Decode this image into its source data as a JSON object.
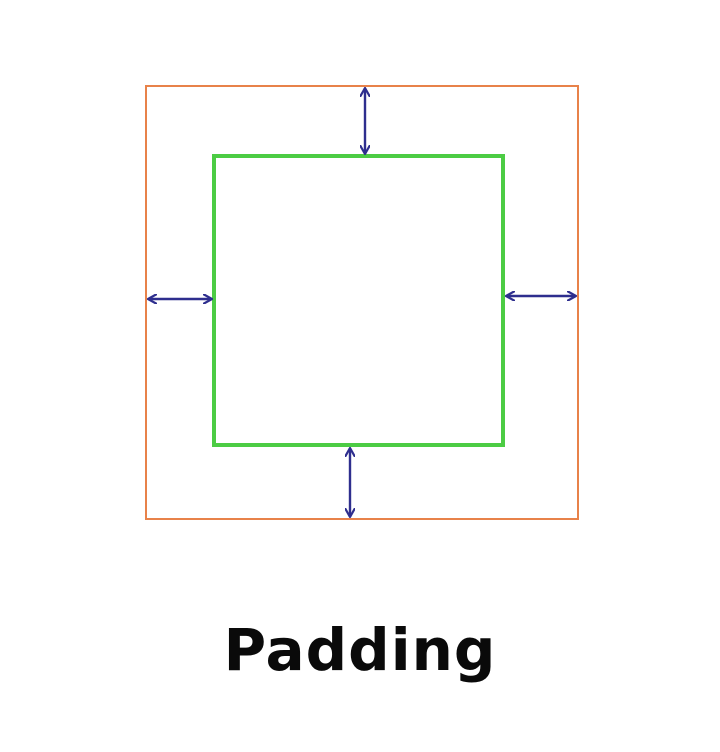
{
  "caption": "Padding",
  "colors": {
    "outer_box": "#e8824a",
    "inner_box": "#4ccc44",
    "arrows": "#2e2e8e",
    "caption": "#0a0a0a",
    "background": "#ffffff"
  },
  "icons": [
    "double-arrow-vertical",
    "double-arrow-horizontal"
  ]
}
